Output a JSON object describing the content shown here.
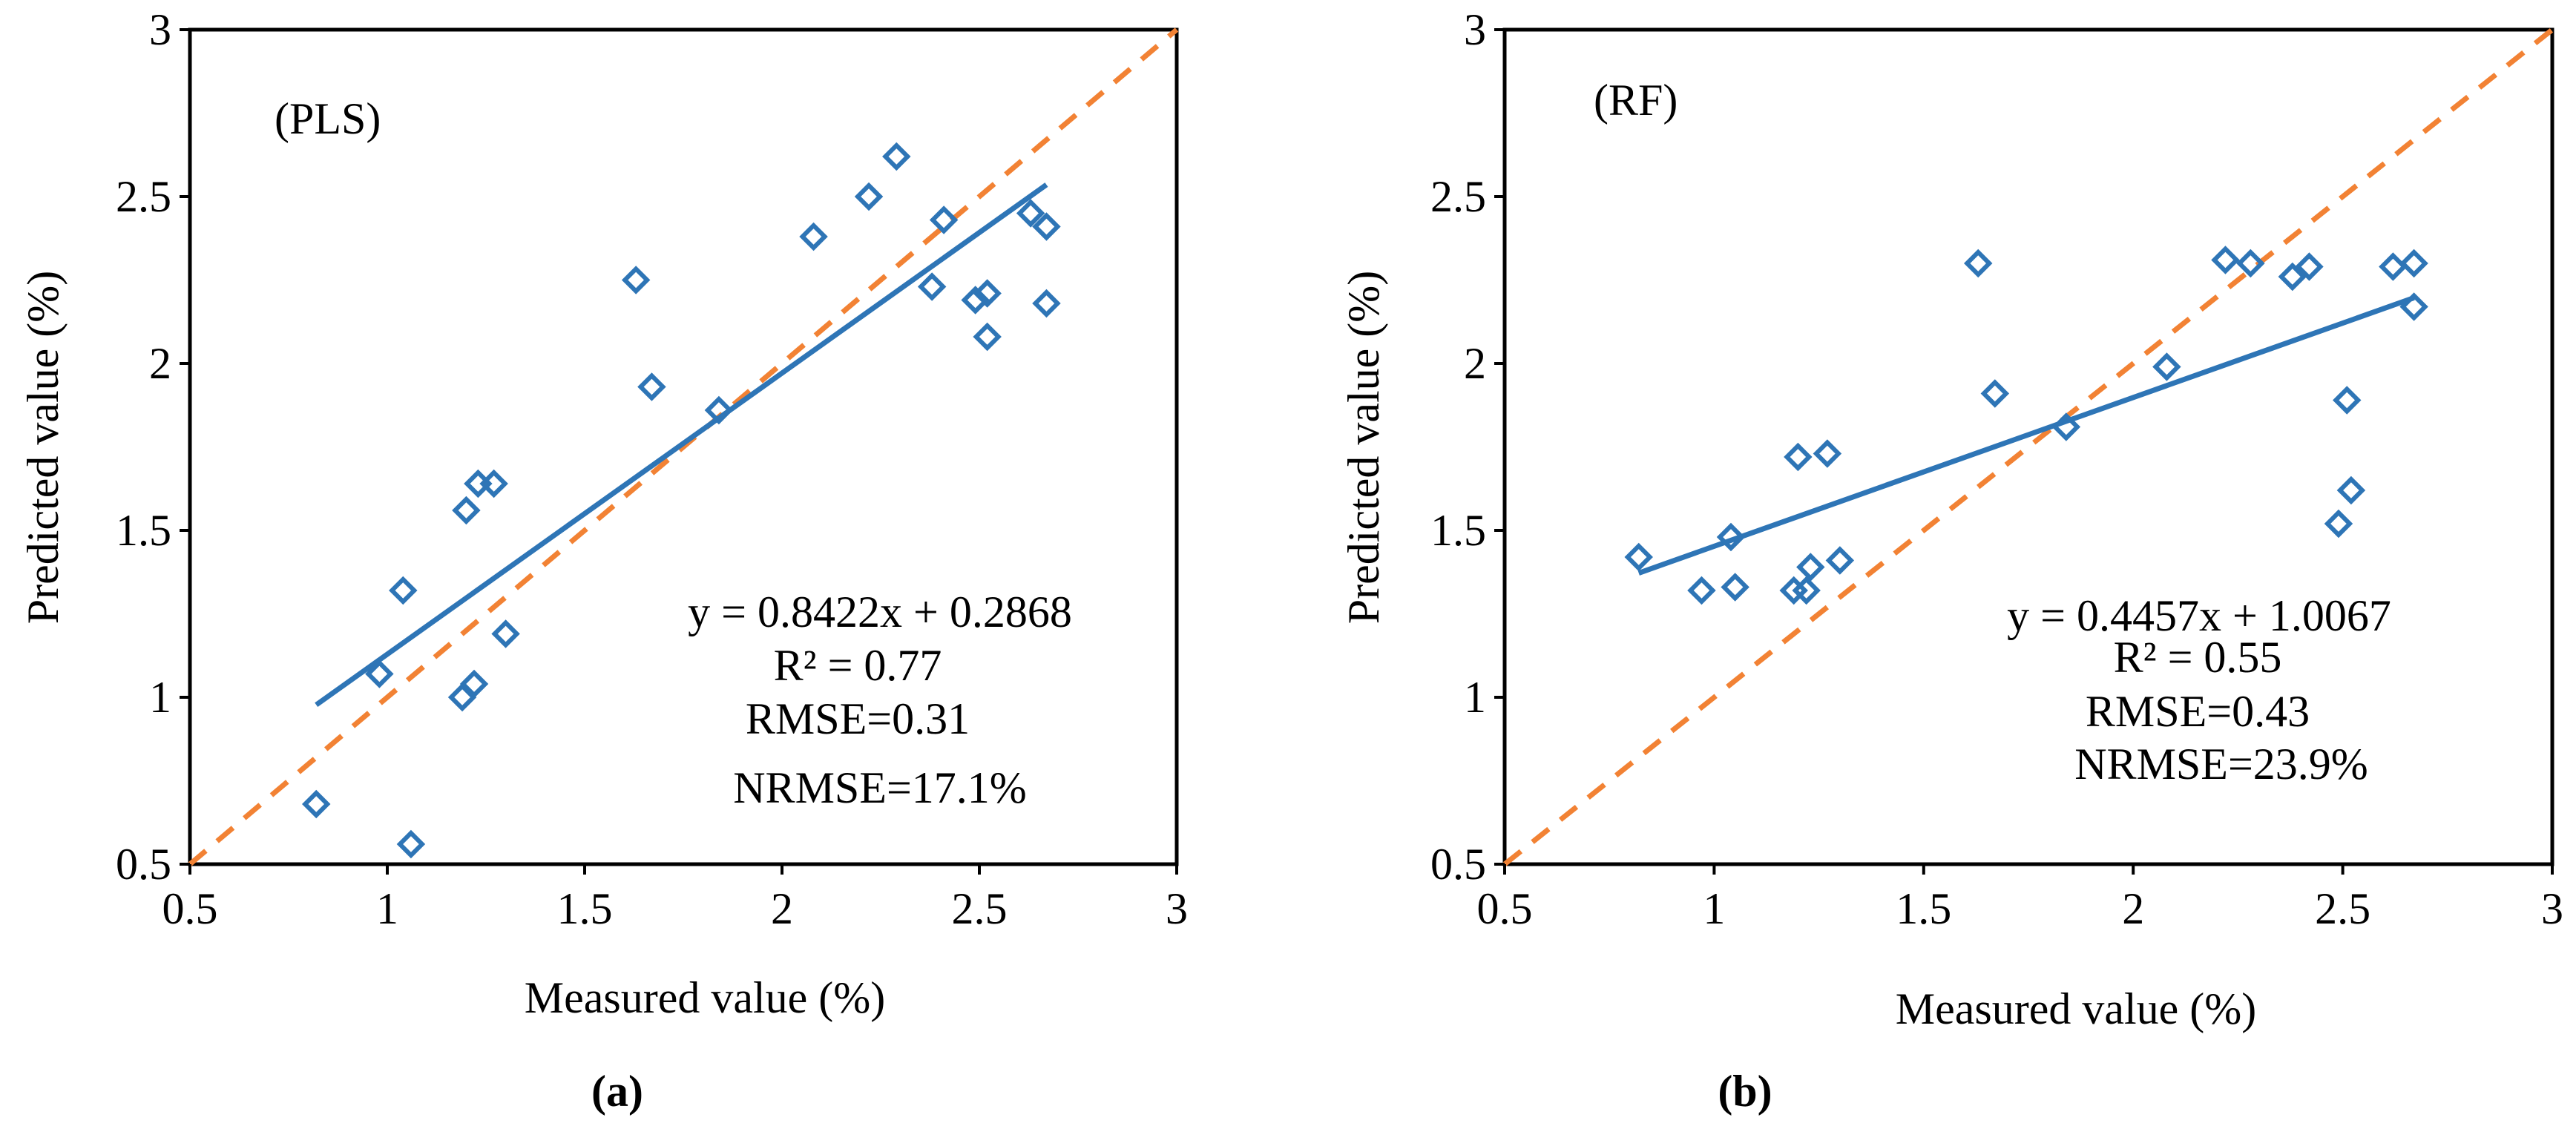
{
  "chart_data": [
    {
      "type": "scatter",
      "panel_label": "(PLS)",
      "sublabel": "(a)",
      "xlabel": "Measured value (%)",
      "ylabel": "Predicted value (%)",
      "xlim": [
        0.5,
        3
      ],
      "ylim": [
        0.5,
        3
      ],
      "xticks": [
        "0.5",
        "1",
        "1.5",
        "2",
        "2.5",
        "3"
      ],
      "yticks": [
        "0.5",
        "1",
        "1.5",
        "2",
        "2.5",
        "3"
      ],
      "grid": false,
      "equation": "y = 0.8422x + 0.2868",
      "r2": "R² = 0.77",
      "rmse": "RMSE=0.31",
      "nrmse": "NRMSE=17.1%",
      "points": [
        {
          "x": 0.82,
          "y": 0.68
        },
        {
          "x": 0.98,
          "y": 1.07
        },
        {
          "x": 1.04,
          "y": 1.32
        },
        {
          "x": 1.06,
          "y": 0.56
        },
        {
          "x": 1.19,
          "y": 1.0
        },
        {
          "x": 1.2,
          "y": 1.56
        },
        {
          "x": 1.22,
          "y": 1.04
        },
        {
          "x": 1.23,
          "y": 1.64
        },
        {
          "x": 1.27,
          "y": 1.64
        },
        {
          "x": 1.3,
          "y": 1.19
        },
        {
          "x": 1.63,
          "y": 2.25
        },
        {
          "x": 1.67,
          "y": 1.93
        },
        {
          "x": 1.84,
          "y": 1.86
        },
        {
          "x": 2.08,
          "y": 2.38
        },
        {
          "x": 2.22,
          "y": 2.5
        },
        {
          "x": 2.29,
          "y": 2.62
        },
        {
          "x": 2.38,
          "y": 2.23
        },
        {
          "x": 2.41,
          "y": 2.43
        },
        {
          "x": 2.49,
          "y": 2.19
        },
        {
          "x": 2.52,
          "y": 2.08
        },
        {
          "x": 2.52,
          "y": 2.21
        },
        {
          "x": 2.63,
          "y": 2.45
        },
        {
          "x": 2.67,
          "y": 2.41
        },
        {
          "x": 2.67,
          "y": 2.18
        }
      ],
      "fit_line": {
        "slope": 0.8422,
        "intercept": 0.2868,
        "x_range": [
          0.82,
          2.67
        ]
      },
      "reference_line": {
        "type": "1:1",
        "x_range": [
          0.5,
          3
        ]
      },
      "colors": {
        "points": "#2e75b6",
        "fit": "#2e75b6",
        "reference": "#f28234"
      }
    },
    {
      "type": "scatter",
      "panel_label": "(RF)",
      "sublabel": "(b)",
      "xlabel": "Measured value (%)",
      "ylabel": "Predicted value (%)",
      "xlim": [
        0.5,
        3
      ],
      "ylim": [
        0.5,
        3
      ],
      "xticks": [
        "0.5",
        "1",
        "1.5",
        "2",
        "2.5",
        "3"
      ],
      "yticks": [
        "0.5",
        "1",
        "1.5",
        "2",
        "2.5",
        "3"
      ],
      "grid": false,
      "equation": "y = 0.4457x + 1.0067",
      "r2": "R² = 0.55",
      "rmse": "RMSE=0.43",
      "nrmse": "NRMSE=23.9%",
      "points": [
        {
          "x": 0.82,
          "y": 1.42
        },
        {
          "x": 0.97,
          "y": 1.32
        },
        {
          "x": 1.04,
          "y": 1.48
        },
        {
          "x": 1.05,
          "y": 1.33
        },
        {
          "x": 1.19,
          "y": 1.32
        },
        {
          "x": 1.2,
          "y": 1.72
        },
        {
          "x": 1.22,
          "y": 1.32
        },
        {
          "x": 1.23,
          "y": 1.39
        },
        {
          "x": 1.27,
          "y": 1.73
        },
        {
          "x": 1.3,
          "y": 1.41
        },
        {
          "x": 1.63,
          "y": 2.3
        },
        {
          "x": 1.67,
          "y": 1.91
        },
        {
          "x": 1.84,
          "y": 1.81
        },
        {
          "x": 2.08,
          "y": 1.99
        },
        {
          "x": 2.22,
          "y": 2.31
        },
        {
          "x": 2.28,
          "y": 2.3
        },
        {
          "x": 2.38,
          "y": 2.26
        },
        {
          "x": 2.42,
          "y": 2.29
        },
        {
          "x": 2.49,
          "y": 1.52
        },
        {
          "x": 2.51,
          "y": 1.89
        },
        {
          "x": 2.52,
          "y": 1.62
        },
        {
          "x": 2.62,
          "y": 2.29
        },
        {
          "x": 2.67,
          "y": 2.3
        },
        {
          "x": 2.67,
          "y": 2.17
        }
      ],
      "fit_line": {
        "slope": 0.4457,
        "intercept": 1.0067,
        "x_range": [
          0.82,
          2.67
        ]
      },
      "reference_line": {
        "type": "1:1",
        "x_range": [
          0.5,
          3
        ]
      },
      "colors": {
        "points": "#2e75b6",
        "fit": "#2e75b6",
        "reference": "#f28234"
      }
    }
  ]
}
